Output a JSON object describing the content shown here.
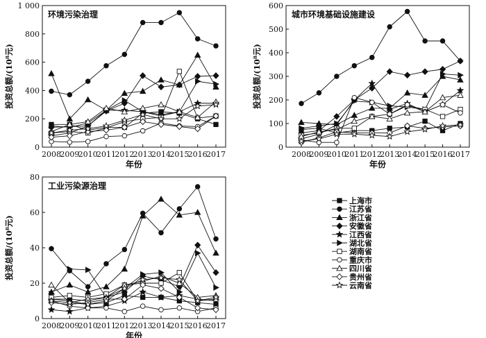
{
  "legend": [
    {
      "name": "上海市",
      "marker": "square-filled"
    },
    {
      "name": "江苏省",
      "marker": "circle-filled"
    },
    {
      "name": "浙江省",
      "marker": "triangle-filled"
    },
    {
      "name": "安徽省",
      "marker": "diamond-filled"
    },
    {
      "name": "江西省",
      "marker": "star-filled"
    },
    {
      "name": "湖北省",
      "marker": "triangle-right-filled"
    },
    {
      "name": "湖南省",
      "marker": "square-open"
    },
    {
      "name": "重庆市",
      "marker": "circle-open"
    },
    {
      "name": "四川省",
      "marker": "triangle-open"
    },
    {
      "name": "贵州省",
      "marker": "diamond-open"
    },
    {
      "name": "云南省",
      "marker": "star-open"
    }
  ],
  "chart_data": [
    {
      "type": "line",
      "title": "环境污染治理",
      "xlabel": "年份",
      "ylabel": "投资总额/(10⁸元)",
      "x": [
        "2008",
        "2009",
        "2010",
        "2011",
        "2012",
        "2013",
        "2014",
        "2015",
        "2016",
        "2017"
      ],
      "ylim": [
        0,
        1000
      ],
      "yticks": [
        0,
        200,
        400,
        600,
        800,
        1000
      ],
      "ytick_labels": [
        "0",
        "200",
        "400",
        "600",
        "800",
        "1 000"
      ],
      "grid": false,
      "series": [
        {
          "name": "上海市",
          "values": [
            160,
            160,
            120,
            140,
            140,
            240,
            250,
            240,
            200,
            160
          ]
        },
        {
          "name": "江苏省",
          "values": [
            395,
            370,
            465,
            575,
            655,
            880,
            880,
            950,
            765,
            715
          ]
        },
        {
          "name": "浙江省",
          "values": [
            520,
            200,
            335,
            260,
            380,
            395,
            475,
            440,
            650,
            425
          ]
        },
        {
          "name": "安徽省",
          "values": [
            140,
            145,
            150,
            255,
            310,
            505,
            425,
            440,
            500,
            505
          ]
        },
        {
          "name": "江西省",
          "values": [
            80,
            100,
            150,
            260,
            260,
            250,
            220,
            250,
            310,
            310
          ]
        },
        {
          "name": "湖北省",
          "values": [
            150,
            140,
            170,
            260,
            330,
            250,
            230,
            250,
            465,
            445
          ]
        },
        {
          "name": "湖南省",
          "values": [
            100,
            110,
            100,
            135,
            180,
            200,
            210,
            535,
            205,
            220
          ]
        },
        {
          "name": "重庆市",
          "values": [
            40,
            35,
            40,
            75,
            80,
            115,
            170,
            150,
            145,
            220
          ]
        },
        {
          "name": "四川省",
          "values": [
            110,
            160,
            180,
            275,
            250,
            275,
            300,
            250,
            210,
            320
          ]
        },
        {
          "name": "贵州省",
          "values": [
            70,
            80,
            110,
            120,
            140,
            180,
            160,
            145,
            130,
            220
          ]
        },
        {
          "name": "云南省",
          "values": [
            100,
            120,
            130,
            150,
            190,
            230,
            200,
            200,
            290,
            300
          ]
        }
      ]
    },
    {
      "type": "line",
      "title": "城市环境基础设施建设",
      "xlabel": "年份",
      "ylabel": "投资总额/(10⁸元)",
      "x": [
        "2008",
        "2009",
        "2010",
        "2011",
        "2012",
        "2013",
        "2014",
        "2015",
        "2016",
        "2017"
      ],
      "ylim": [
        0,
        600
      ],
      "yticks": [
        0,
        100,
        200,
        300,
        400,
        500,
        600
      ],
      "ytick_labels": [
        "0",
        "100",
        "200",
        "300",
        "400",
        "500",
        "600"
      ],
      "grid": false,
      "series": [
        {
          "name": "上海市",
          "values": [
            75,
            80,
            60,
            70,
            70,
            80,
            85,
            110,
            70,
            100
          ]
        },
        {
          "name": "江苏省",
          "values": [
            185,
            230,
            300,
            345,
            380,
            510,
            575,
            450,
            450,
            365
          ]
        },
        {
          "name": "浙江省",
          "values": [
            105,
            100,
            95,
            135,
            165,
            165,
            230,
            220,
            300,
            285
          ]
        },
        {
          "name": "安徽省",
          "values": [
            60,
            70,
            130,
            200,
            250,
            320,
            305,
            320,
            330,
            365
          ]
        },
        {
          "name": "江西省",
          "values": [
            35,
            55,
            95,
            200,
            270,
            160,
            185,
            150,
            180,
            240
          ]
        },
        {
          "name": "湖北省",
          "values": [
            80,
            90,
            100,
            195,
            190,
            175,
            170,
            160,
            310,
            305
          ]
        },
        {
          "name": "湖南省",
          "values": [
            50,
            60,
            80,
            80,
            130,
            140,
            175,
            160,
            130,
            160
          ]
        },
        {
          "name": "重庆市",
          "values": [
            30,
            20,
            20,
            210,
            190,
            140,
            180,
            150,
            180,
            145
          ]
        },
        {
          "name": "四川省",
          "values": [
            45,
            65,
            75,
            110,
            130,
            120,
            145,
            150,
            210,
            220
          ]
        },
        {
          "name": "贵州省",
          "values": [
            20,
            40,
            65,
            60,
            60,
            60,
            90,
            80,
            85,
            90
          ]
        },
        {
          "name": "云南省",
          "values": [
            25,
            35,
            55,
            55,
            50,
            45,
            65,
            75,
            90,
            95
          ]
        }
      ]
    },
    {
      "type": "line",
      "title": "工业污染源治理",
      "xlabel": "年份",
      "ylabel": "投资总额/(10⁸元)",
      "x": [
        "2008",
        "2009",
        "2010",
        "2011",
        "2012",
        "2013",
        "2014",
        "2015",
        "2016",
        "2017"
      ],
      "ylim": [
        0,
        80
      ],
      "yticks": [
        0,
        20,
        40,
        60,
        80
      ],
      "ytick_labels": [
        "0",
        "20",
        "40",
        "60",
        "80"
      ],
      "grid": false,
      "series": [
        {
          "name": "上海市",
          "values": [
            11,
            10,
            8,
            9,
            13,
            12,
            12,
            10,
            9,
            8
          ]
        },
        {
          "name": "江苏省",
          "values": [
            39.5,
            27,
            18,
            31,
            39,
            59.5,
            48.5,
            62,
            74.5,
            45
          ]
        },
        {
          "name": "浙江省",
          "values": [
            15,
            19,
            15,
            18,
            28,
            58,
            67.5,
            58.5,
            60,
            37
          ]
        },
        {
          "name": "安徽省",
          "values": [
            11,
            11,
            10,
            12,
            15,
            24,
            22,
            18,
            41.5,
            26
          ]
        },
        {
          "name": "江西省",
          "values": [
            5,
            4,
            6,
            7,
            10,
            15,
            12,
            13,
            11,
            10
          ]
        },
        {
          "name": "湖北省",
          "values": [
            14,
            28,
            27.5,
            12,
            17,
            25,
            26,
            15,
            37,
            17.5
          ]
        },
        {
          "name": "湖南省",
          "values": [
            12,
            13,
            12,
            14,
            19,
            20,
            20,
            26,
            10,
            11
          ]
        },
        {
          "name": "重庆市",
          "values": [
            10,
            7,
            6,
            6,
            4,
            7,
            5,
            6,
            4,
            6
          ]
        },
        {
          "name": "四川省",
          "values": [
            19,
            9,
            11,
            12,
            19,
            21,
            24,
            20,
            12,
            13
          ]
        },
        {
          "name": "贵州省",
          "values": [
            9,
            8,
            9,
            11,
            11,
            19,
            17,
            12,
            6,
            5
          ]
        },
        {
          "name": "云南省",
          "values": [
            10,
            9,
            8,
            10,
            17,
            22,
            23,
            22,
            10,
            12
          ]
        }
      ]
    }
  ]
}
